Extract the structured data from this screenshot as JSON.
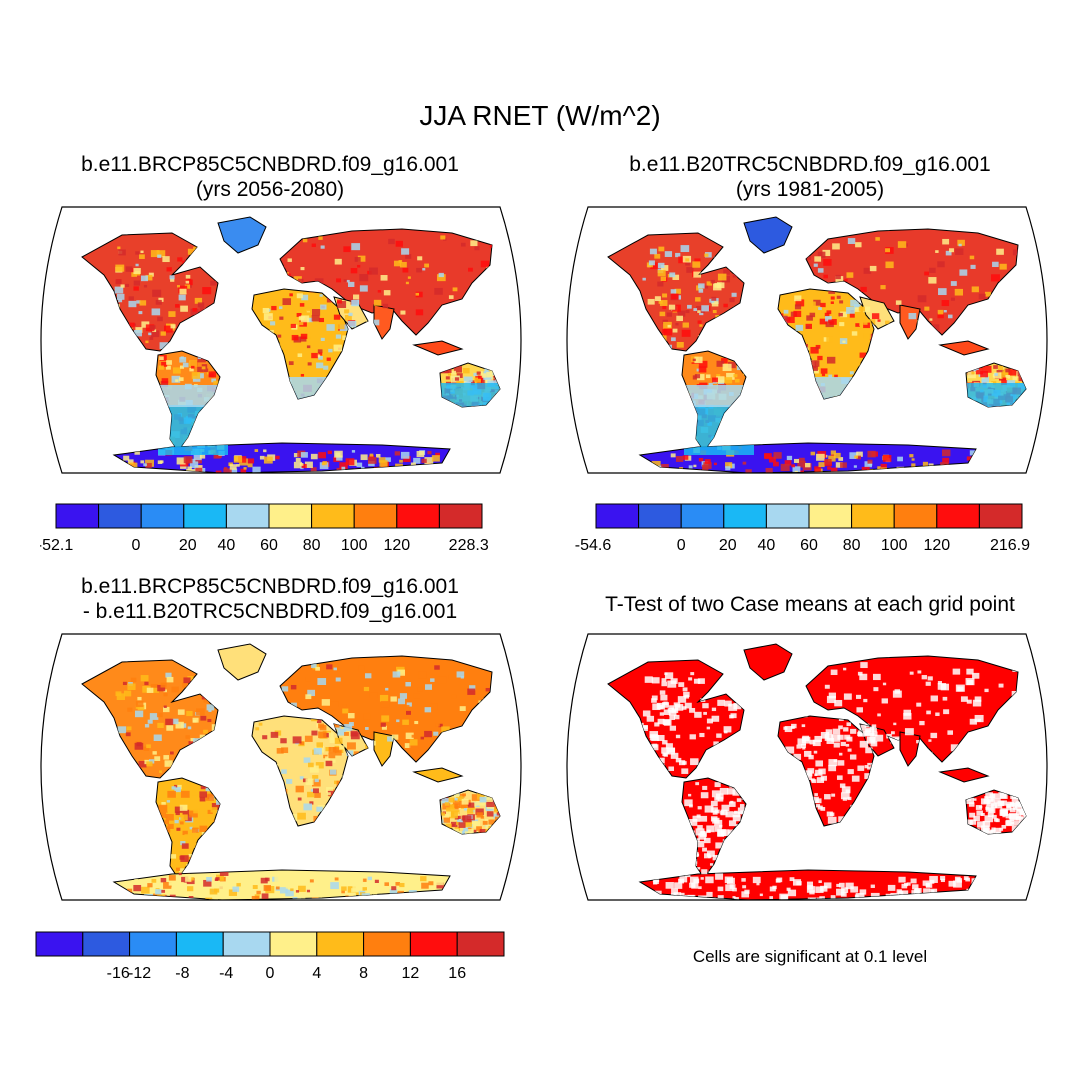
{
  "main_title": "JJA RNET (W/m^2)",
  "panels": [
    {
      "id": "top-left",
      "title_line1": "b.e11.BRCP85C5CNBDRD.f09_g16.001",
      "title_line2": "(yrs 2056-2080)"
    },
    {
      "id": "top-right",
      "title_line1": "b.e11.B20TRC5CNBDRD.f09_g16.001",
      "title_line2": "(yrs 1981-2005)"
    },
    {
      "id": "bottom-left",
      "title_line1": "b.e11.BRCP85C5CNBDRD.f09_g16.001",
      "title_line2": "- b.e11.B20TRC5CNBDRD.f09_g16.001"
    },
    {
      "id": "bottom-right",
      "title_line1": "T-Test of two Case means at each grid point",
      "title_line2": ""
    }
  ],
  "colorbars": {
    "top_left": {
      "colors": [
        "#3a13f0",
        "#2d5ae0",
        "#2a8cf5",
        "#1ab8f5",
        "#a8d8f0",
        "#fff08a",
        "#ffbb1a",
        "#ff7f0f",
        "#ff0d0d",
        "#d42a2a"
      ],
      "labels": [
        "-52.1",
        "0",
        "20",
        "40",
        "60",
        "80",
        "100",
        "120",
        "228.3"
      ]
    },
    "top_right": {
      "colors": [
        "#3a13f0",
        "#2d5ae0",
        "#2a8cf5",
        "#1ab8f5",
        "#a8d8f0",
        "#fff08a",
        "#ffbb1a",
        "#ff7f0f",
        "#ff0d0d",
        "#d42a2a"
      ],
      "labels": [
        "-54.6",
        "0",
        "20",
        "40",
        "60",
        "80",
        "100",
        "120",
        "216.9"
      ]
    },
    "bottom_left": {
      "colors": [
        "#3a13f0",
        "#2d5ae0",
        "#2a8cf5",
        "#1ab8f5",
        "#a8d8f0",
        "#fff08a",
        "#ffbb1a",
        "#ff7f0f",
        "#ff0d0d",
        "#d42a2a"
      ],
      "labels": [
        "-16",
        "-12",
        "-8",
        "-4",
        "0",
        "4",
        "8",
        "12",
        "16"
      ]
    }
  },
  "significance_note": "Cells are significant at 0.1 level",
  "colors": {
    "significant": "#ff0000",
    "land_outline": "#000000"
  }
}
